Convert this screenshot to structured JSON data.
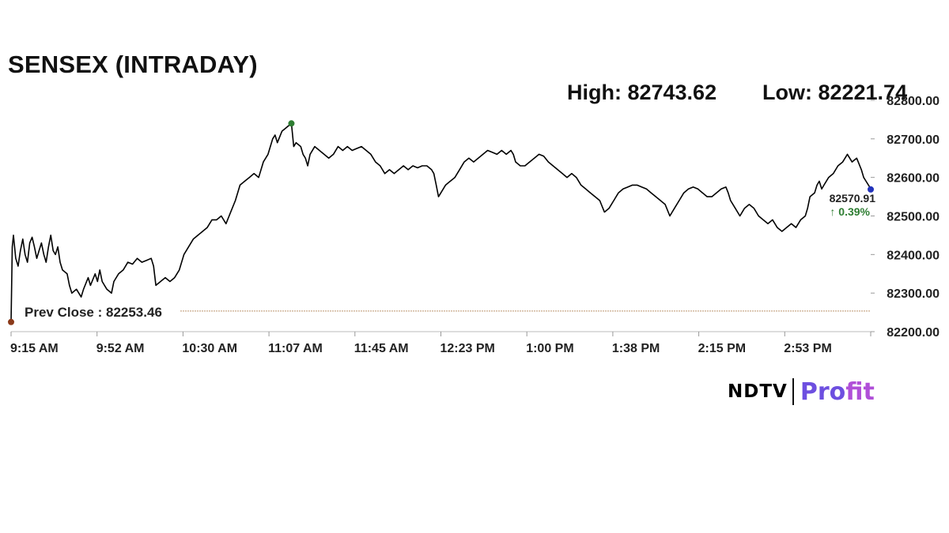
{
  "chart_data": {
    "type": "line",
    "title": "SENSEX (INTRADAY)",
    "high_label": "High: 82743.62",
    "low_label": "Low: 82221.74",
    "prev_close_label": "Prev Close : 82253.46",
    "prev_close": 82253.46,
    "last_value_label": "82570.91",
    "change_label": "↑ 0.39%",
    "ylim": [
      82200,
      82800
    ],
    "y_ticks": [
      "82200.00",
      "82300.00",
      "82400.00",
      "82500.00",
      "82600.00",
      "82700.00",
      "82800.00"
    ],
    "x_ticks": [
      "9:15 AM",
      "9:52 AM",
      "10:30 AM",
      "11:07 AM",
      "11:45 AM",
      "12:23 PM",
      "1:00 PM",
      "1:38 PM",
      "2:15 PM",
      "2:53 PM"
    ],
    "x_range_minutes": [
      0,
      368
    ],
    "series": [
      {
        "points": [
          [
            0,
            82225
          ],
          [
            0.5,
            82420
          ],
          [
            1,
            82450
          ],
          [
            2,
            82390
          ],
          [
            3,
            82370
          ],
          [
            4,
            82410
          ],
          [
            5,
            82440
          ],
          [
            6,
            82400
          ],
          [
            7,
            82380
          ],
          [
            8,
            82430
          ],
          [
            9,
            82445
          ],
          [
            10,
            82420
          ],
          [
            11,
            82390
          ],
          [
            12,
            82410
          ],
          [
            13,
            82430
          ],
          [
            14,
            82400
          ],
          [
            15,
            82380
          ],
          [
            16,
            82420
          ],
          [
            17,
            82450
          ],
          [
            18,
            82410
          ],
          [
            19,
            82400
          ],
          [
            20,
            82420
          ],
          [
            21,
            82380
          ],
          [
            22,
            82360
          ],
          [
            24,
            82350
          ],
          [
            25,
            82320
          ],
          [
            26,
            82300
          ],
          [
            28,
            82310
          ],
          [
            30,
            82290
          ],
          [
            31,
            82310
          ],
          [
            33,
            82340
          ],
          [
            34,
            82320
          ],
          [
            36,
            82350
          ],
          [
            37,
            82330
          ],
          [
            38,
            82360
          ],
          [
            39,
            82330
          ],
          [
            41,
            82310
          ],
          [
            43,
            82300
          ],
          [
            44,
            82330
          ],
          [
            46,
            82350
          ],
          [
            48,
            82360
          ],
          [
            50,
            82380
          ],
          [
            52,
            82375
          ],
          [
            54,
            82390
          ],
          [
            56,
            82380
          ],
          [
            58,
            82385
          ],
          [
            60,
            82390
          ],
          [
            61,
            82370
          ],
          [
            62,
            82320
          ],
          [
            64,
            82330
          ],
          [
            66,
            82340
          ],
          [
            68,
            82330
          ],
          [
            70,
            82340
          ],
          [
            72,
            82360
          ],
          [
            74,
            82400
          ],
          [
            76,
            82420
          ],
          [
            78,
            82440
          ],
          [
            80,
            82450
          ],
          [
            82,
            82460
          ],
          [
            84,
            82470
          ],
          [
            86,
            82490
          ],
          [
            88,
            82490
          ],
          [
            90,
            82500
          ],
          [
            92,
            82480
          ],
          [
            94,
            82510
          ],
          [
            96,
            82540
          ],
          [
            98,
            82580
          ],
          [
            100,
            82590
          ],
          [
            102,
            82600
          ],
          [
            104,
            82610
          ],
          [
            106,
            82600
          ],
          [
            108,
            82640
          ],
          [
            110,
            82660
          ],
          [
            112,
            82700
          ],
          [
            113,
            82710
          ],
          [
            114,
            82690
          ],
          [
            116,
            82720
          ],
          [
            118,
            82730
          ],
          [
            120,
            82740
          ],
          [
            121,
            82680
          ],
          [
            122,
            82690
          ],
          [
            124,
            82680
          ],
          [
            125,
            82660
          ],
          [
            126,
            82650
          ],
          [
            127,
            82630
          ],
          [
            128,
            82660
          ],
          [
            130,
            82680
          ],
          [
            132,
            82670
          ],
          [
            134,
            82660
          ],
          [
            136,
            82650
          ],
          [
            138,
            82660
          ],
          [
            140,
            82680
          ],
          [
            142,
            82670
          ],
          [
            144,
            82680
          ],
          [
            146,
            82670
          ],
          [
            148,
            82675
          ],
          [
            150,
            82680
          ],
          [
            152,
            82670
          ],
          [
            154,
            82660
          ],
          [
            156,
            82640
          ],
          [
            158,
            82630
          ],
          [
            160,
            82610
          ],
          [
            162,
            82620
          ],
          [
            164,
            82610
          ],
          [
            166,
            82620
          ],
          [
            168,
            82630
          ],
          [
            170,
            82620
          ],
          [
            172,
            82630
          ],
          [
            174,
            82625
          ],
          [
            176,
            82630
          ],
          [
            178,
            82630
          ],
          [
            180,
            82620
          ],
          [
            181,
            82610
          ],
          [
            182,
            82580
          ],
          [
            183,
            82550
          ],
          [
            184,
            82560
          ],
          [
            186,
            82580
          ],
          [
            188,
            82590
          ],
          [
            190,
            82600
          ],
          [
            192,
            82620
          ],
          [
            194,
            82640
          ],
          [
            196,
            82650
          ],
          [
            198,
            82640
          ],
          [
            200,
            82650
          ],
          [
            202,
            82660
          ],
          [
            204,
            82670
          ],
          [
            206,
            82665
          ],
          [
            208,
            82660
          ],
          [
            210,
            82670
          ],
          [
            212,
            82660
          ],
          [
            214,
            82670
          ],
          [
            215,
            82660
          ],
          [
            216,
            82640
          ],
          [
            218,
            82630
          ],
          [
            220,
            82630
          ],
          [
            222,
            82640
          ],
          [
            224,
            82650
          ],
          [
            226,
            82660
          ],
          [
            228,
            82655
          ],
          [
            230,
            82640
          ],
          [
            232,
            82630
          ],
          [
            234,
            82620
          ],
          [
            236,
            82610
          ],
          [
            238,
            82600
          ],
          [
            240,
            82610
          ],
          [
            242,
            82600
          ],
          [
            244,
            82580
          ],
          [
            246,
            82570
          ],
          [
            248,
            82560
          ],
          [
            250,
            82550
          ],
          [
            252,
            82540
          ],
          [
            254,
            82510
          ],
          [
            256,
            82520
          ],
          [
            258,
            82540
          ],
          [
            260,
            82560
          ],
          [
            262,
            82570
          ],
          [
            264,
            82575
          ],
          [
            266,
            82580
          ],
          [
            268,
            82580
          ],
          [
            270,
            82575
          ],
          [
            272,
            82570
          ],
          [
            274,
            82560
          ],
          [
            276,
            82550
          ],
          [
            278,
            82540
          ],
          [
            280,
            82530
          ],
          [
            282,
            82500
          ],
          [
            284,
            82520
          ],
          [
            286,
            82540
          ],
          [
            288,
            82560
          ],
          [
            290,
            82570
          ],
          [
            292,
            82575
          ],
          [
            294,
            82570
          ],
          [
            296,
            82560
          ],
          [
            298,
            82550
          ],
          [
            300,
            82550
          ],
          [
            302,
            82560
          ],
          [
            304,
            82570
          ],
          [
            306,
            82575
          ],
          [
            307,
            82560
          ],
          [
            308,
            82540
          ],
          [
            310,
            82520
          ],
          [
            312,
            82500
          ],
          [
            314,
            82520
          ],
          [
            316,
            82530
          ],
          [
            318,
            82520
          ],
          [
            320,
            82500
          ],
          [
            322,
            82490
          ],
          [
            324,
            82480
          ],
          [
            326,
            82490
          ],
          [
            328,
            82470
          ],
          [
            330,
            82460
          ],
          [
            332,
            82470
          ],
          [
            334,
            82480
          ],
          [
            336,
            82470
          ],
          [
            338,
            82490
          ],
          [
            340,
            82500
          ],
          [
            341,
            82520
          ],
          [
            342,
            82550
          ],
          [
            344,
            82560
          ],
          [
            345,
            82580
          ],
          [
            346,
            82590
          ],
          [
            347,
            82570
          ],
          [
            348,
            82580
          ],
          [
            350,
            82600
          ],
          [
            352,
            82610
          ],
          [
            354,
            82630
          ],
          [
            356,
            82640
          ],
          [
            358,
            82660
          ],
          [
            360,
            82640
          ],
          [
            362,
            82650
          ],
          [
            364,
            82620
          ],
          [
            365,
            82600
          ],
          [
            366,
            82590
          ],
          [
            368,
            82570.91
          ]
        ]
      }
    ],
    "colors": {
      "line": "#000000",
      "prev_close_line": "#c8a888",
      "high_marker": "#2e7d32",
      "low_marker": "#8b3a1a",
      "last_marker": "#2233bb",
      "change": "#2e7d32"
    }
  },
  "brand": {
    "name_left": "NDTV",
    "name_right_a": "Pro",
    "name_right_b": "fit"
  }
}
